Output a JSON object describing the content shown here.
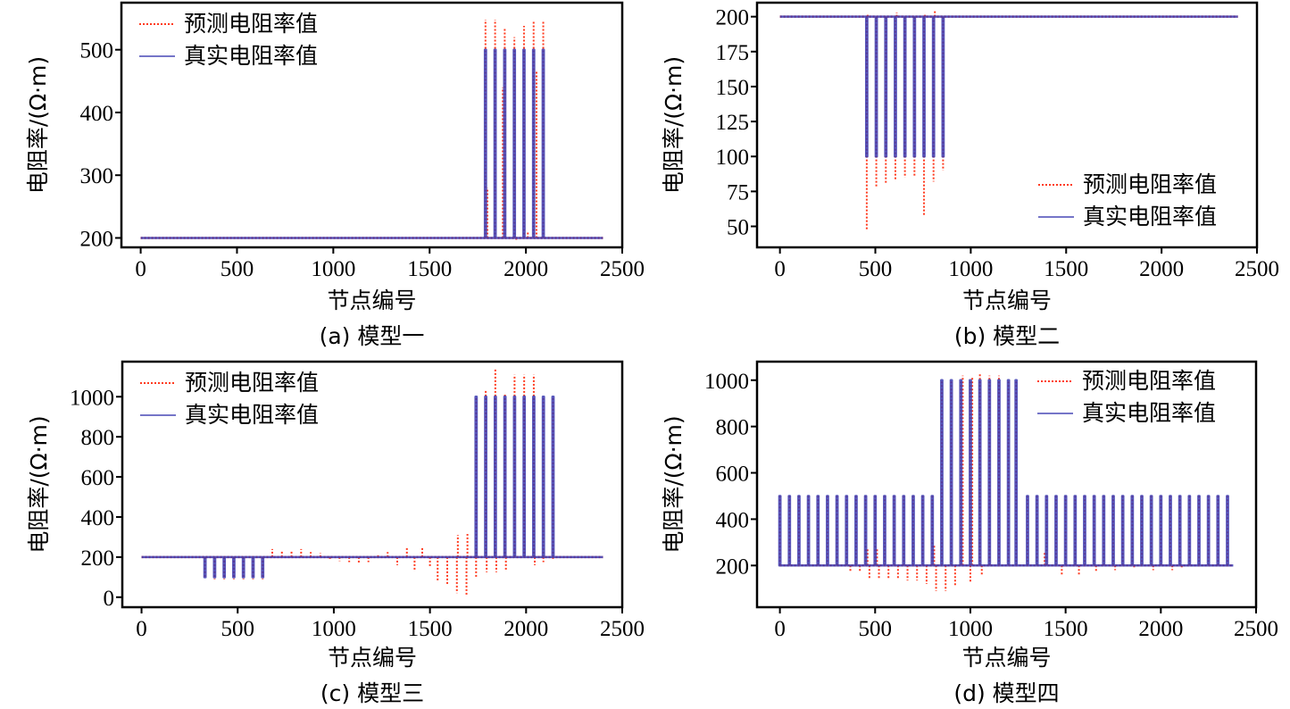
{
  "chart_data": [
    {
      "id": "a",
      "type": "line",
      "caption": "(a) 模型一",
      "xlabel": "节点编号",
      "ylabel": "电阻率/(Ω·m)",
      "xlim": [
        -100,
        2500
      ],
      "ylim": [
        185,
        575
      ],
      "xticks": [
        0,
        500,
        1000,
        1500,
        2000,
        2500
      ],
      "yticks": [
        200,
        300,
        400,
        500
      ],
      "legend": {
        "position": "top-left",
        "entries": [
          "预测电阻率值",
          "真实电阻率值"
        ]
      },
      "background": 200,
      "x_end": 2400,
      "true_events": [
        {
          "x": 1790,
          "v": 500
        },
        {
          "x": 1840,
          "v": 500
        },
        {
          "x": 1890,
          "v": 500
        },
        {
          "x": 1940,
          "v": 500
        },
        {
          "x": 1990,
          "v": 500
        },
        {
          "x": 2040,
          "v": 500
        },
        {
          "x": 2090,
          "v": 500
        }
      ],
      "pred_events": [
        {
          "x": 1790,
          "v": 548
        },
        {
          "x": 1800,
          "v": 280
        },
        {
          "x": 1840,
          "v": 548
        },
        {
          "x": 1880,
          "v": 440
        },
        {
          "x": 1890,
          "v": 535
        },
        {
          "x": 1940,
          "v": 520
        },
        {
          "x": 1950,
          "v": 195
        },
        {
          "x": 1990,
          "v": 538
        },
        {
          "x": 2010,
          "v": 210
        },
        {
          "x": 2040,
          "v": 545
        },
        {
          "x": 2055,
          "v": 465
        },
        {
          "x": 2090,
          "v": 545
        }
      ],
      "series": [
        {
          "name": "预测电阻率值",
          "color": "#ff3b1f",
          "style": "dotted"
        },
        {
          "name": "真实电阻率值",
          "color": "#3b3bb0",
          "style": "solid"
        }
      ]
    },
    {
      "id": "b",
      "type": "line",
      "caption": "(b) 模型二",
      "xlabel": "节点编号",
      "ylabel": "电阻率/(Ω·m)",
      "xlim": [
        -120,
        2500
      ],
      "ylim": [
        35,
        210
      ],
      "xticks": [
        0,
        500,
        1000,
        1500,
        2000,
        2500
      ],
      "yticks": [
        50,
        75,
        100,
        125,
        150,
        175,
        200
      ],
      "legend": {
        "position": "bottom-right",
        "entries": [
          "预测电阻率值",
          "真实电阻率值"
        ]
      },
      "background": 200,
      "x_end": 2400,
      "true_events": [
        {
          "x": 455,
          "v": 100
        },
        {
          "x": 505,
          "v": 100
        },
        {
          "x": 555,
          "v": 100
        },
        {
          "x": 605,
          "v": 100
        },
        {
          "x": 655,
          "v": 100
        },
        {
          "x": 705,
          "v": 100
        },
        {
          "x": 755,
          "v": 100
        },
        {
          "x": 805,
          "v": 100
        },
        {
          "x": 855,
          "v": 100
        }
      ],
      "pred_events": [
        {
          "x": 455,
          "v": 47
        },
        {
          "x": 460,
          "v": 202
        },
        {
          "x": 505,
          "v": 78
        },
        {
          "x": 555,
          "v": 80
        },
        {
          "x": 605,
          "v": 83
        },
        {
          "x": 612,
          "v": 203
        },
        {
          "x": 655,
          "v": 85
        },
        {
          "x": 705,
          "v": 86
        },
        {
          "x": 755,
          "v": 58
        },
        {
          "x": 760,
          "v": 202
        },
        {
          "x": 805,
          "v": 82
        },
        {
          "x": 812,
          "v": 204
        },
        {
          "x": 855,
          "v": 90
        }
      ],
      "series": [
        {
          "name": "预测电阻率值",
          "color": "#ff3b1f",
          "style": "dotted"
        },
        {
          "name": "真实电阻率值",
          "color": "#3b3bb0",
          "style": "solid"
        }
      ]
    },
    {
      "id": "c",
      "type": "line",
      "caption": "(c) 模型三",
      "xlabel": "节点编号",
      "ylabel": "电阻率/(Ω·m)",
      "xlim": [
        -100,
        2500
      ],
      "ylim": [
        -50,
        1175
      ],
      "xticks": [
        0,
        500,
        1000,
        1500,
        2000,
        2500
      ],
      "yticks": [
        0,
        200,
        400,
        600,
        800,
        1000
      ],
      "legend": {
        "position": "top-left",
        "entries": [
          "预测电阻率值",
          "真实电阻率值"
        ]
      },
      "background": 200,
      "x_end": 2400,
      "true_events": [
        {
          "x": 330,
          "v": 100
        },
        {
          "x": 380,
          "v": 100
        },
        {
          "x": 430,
          "v": 100
        },
        {
          "x": 480,
          "v": 100
        },
        {
          "x": 530,
          "v": 100
        },
        {
          "x": 580,
          "v": 100
        },
        {
          "x": 630,
          "v": 100
        },
        {
          "x": 1740,
          "v": 1000
        },
        {
          "x": 1790,
          "v": 1000
        },
        {
          "x": 1840,
          "v": 1000
        },
        {
          "x": 1890,
          "v": 1000
        },
        {
          "x": 1940,
          "v": 1000
        },
        {
          "x": 1990,
          "v": 1000
        },
        {
          "x": 2040,
          "v": 1000
        },
        {
          "x": 2090,
          "v": 1000
        },
        {
          "x": 2140,
          "v": 1000
        }
      ],
      "pred_events": [
        {
          "x": 380,
          "v": 90
        },
        {
          "x": 430,
          "v": 90
        },
        {
          "x": 480,
          "v": 90
        },
        {
          "x": 530,
          "v": 90
        },
        {
          "x": 580,
          "v": 90
        },
        {
          "x": 630,
          "v": 90
        },
        {
          "x": 680,
          "v": 240
        },
        {
          "x": 730,
          "v": 235
        },
        {
          "x": 780,
          "v": 230
        },
        {
          "x": 830,
          "v": 240
        },
        {
          "x": 880,
          "v": 225
        },
        {
          "x": 930,
          "v": 220
        },
        {
          "x": 980,
          "v": 185
        },
        {
          "x": 1030,
          "v": 180
        },
        {
          "x": 1080,
          "v": 175
        },
        {
          "x": 1130,
          "v": 170
        },
        {
          "x": 1180,
          "v": 175
        },
        {
          "x": 1230,
          "v": 210
        },
        {
          "x": 1280,
          "v": 225
        },
        {
          "x": 1330,
          "v": 160
        },
        {
          "x": 1380,
          "v": 250
        },
        {
          "x": 1420,
          "v": 130
        },
        {
          "x": 1460,
          "v": 250
        },
        {
          "x": 1500,
          "v": 150
        },
        {
          "x": 1540,
          "v": 80
        },
        {
          "x": 1590,
          "v": 60
        },
        {
          "x": 1640,
          "v": 20
        },
        {
          "x": 1645,
          "v": 310
        },
        {
          "x": 1690,
          "v": 10
        },
        {
          "x": 1695,
          "v": 315
        },
        {
          "x": 1740,
          "v": 100
        },
        {
          "x": 1790,
          "v": 1030
        },
        {
          "x": 1795,
          "v": 125
        },
        {
          "x": 1840,
          "v": 1140
        },
        {
          "x": 1845,
          "v": 125
        },
        {
          "x": 1890,
          "v": 1010
        },
        {
          "x": 1895,
          "v": 135
        },
        {
          "x": 1940,
          "v": 1110
        },
        {
          "x": 1990,
          "v": 1110
        },
        {
          "x": 2040,
          "v": 1110
        },
        {
          "x": 2045,
          "v": 160
        },
        {
          "x": 2090,
          "v": 175
        },
        {
          "x": 2140,
          "v": 185
        }
      ],
      "series": [
        {
          "name": "预测电阻率值",
          "color": "#ff3b1f",
          "style": "dotted"
        },
        {
          "name": "真实电阻率值",
          "color": "#3b3bb0",
          "style": "solid"
        }
      ]
    },
    {
      "id": "d",
      "type": "line",
      "caption": "(d) 模型四",
      "xlabel": "节点编号",
      "ylabel": "电阻率/(Ω·m)",
      "xlim": [
        -120,
        2500
      ],
      "ylim": [
        20,
        1080
      ],
      "xticks": [
        0,
        500,
        1000,
        1500,
        2000,
        2500
      ],
      "yticks": [
        200,
        400,
        600,
        800,
        1000
      ],
      "legend": {
        "position": "top-right",
        "entries": [
          "预测电阻率值",
          "真实电阻率值"
        ]
      },
      "background": 200,
      "x_end": 2380,
      "pulse": {
        "start": 0,
        "step": 50,
        "end": 2350,
        "value": 500
      },
      "true_events": [
        {
          "x": 850,
          "v": 1000
        },
        {
          "x": 900,
          "v": 1000
        },
        {
          "x": 950,
          "v": 1000
        },
        {
          "x": 1000,
          "v": 1000
        },
        {
          "x": 1050,
          "v": 1000
        },
        {
          "x": 1100,
          "v": 1000
        },
        {
          "x": 1150,
          "v": 1000
        },
        {
          "x": 1200,
          "v": 1000
        },
        {
          "x": 1240,
          "v": 1000
        }
      ],
      "pred_events": [
        {
          "x": 370,
          "v": 170
        },
        {
          "x": 420,
          "v": 175
        },
        {
          "x": 470,
          "v": 145
        },
        {
          "x": 520,
          "v": 145
        },
        {
          "x": 570,
          "v": 145
        },
        {
          "x": 620,
          "v": 140
        },
        {
          "x": 670,
          "v": 135
        },
        {
          "x": 720,
          "v": 135
        },
        {
          "x": 770,
          "v": 120
        },
        {
          "x": 820,
          "v": 90
        },
        {
          "x": 870,
          "v": 90
        },
        {
          "x": 920,
          "v": 115
        },
        {
          "x": 960,
          "v": 1020
        },
        {
          "x": 1010,
          "v": 1015
        },
        {
          "x": 1050,
          "v": 1030
        },
        {
          "x": 1100,
          "v": 1020
        },
        {
          "x": 1150,
          "v": 1020
        },
        {
          "x": 460,
          "v": 275
        },
        {
          "x": 510,
          "v": 275
        },
        {
          "x": 810,
          "v": 290
        },
        {
          "x": 1000,
          "v": 130
        },
        {
          "x": 1060,
          "v": 160
        },
        {
          "x": 1300,
          "v": 235
        },
        {
          "x": 1390,
          "v": 260
        },
        {
          "x": 1480,
          "v": 160
        },
        {
          "x": 1570,
          "v": 160
        },
        {
          "x": 1660,
          "v": 175
        },
        {
          "x": 1760,
          "v": 180
        },
        {
          "x": 1860,
          "v": 185
        },
        {
          "x": 1960,
          "v": 180
        },
        {
          "x": 2060,
          "v": 180
        },
        {
          "x": 2110,
          "v": 190
        }
      ],
      "series": [
        {
          "name": "预测电阻率值",
          "color": "#ff3b1f",
          "style": "dotted"
        },
        {
          "name": "真实电阻率值",
          "color": "#3b3bb0",
          "style": "solid"
        }
      ]
    }
  ]
}
